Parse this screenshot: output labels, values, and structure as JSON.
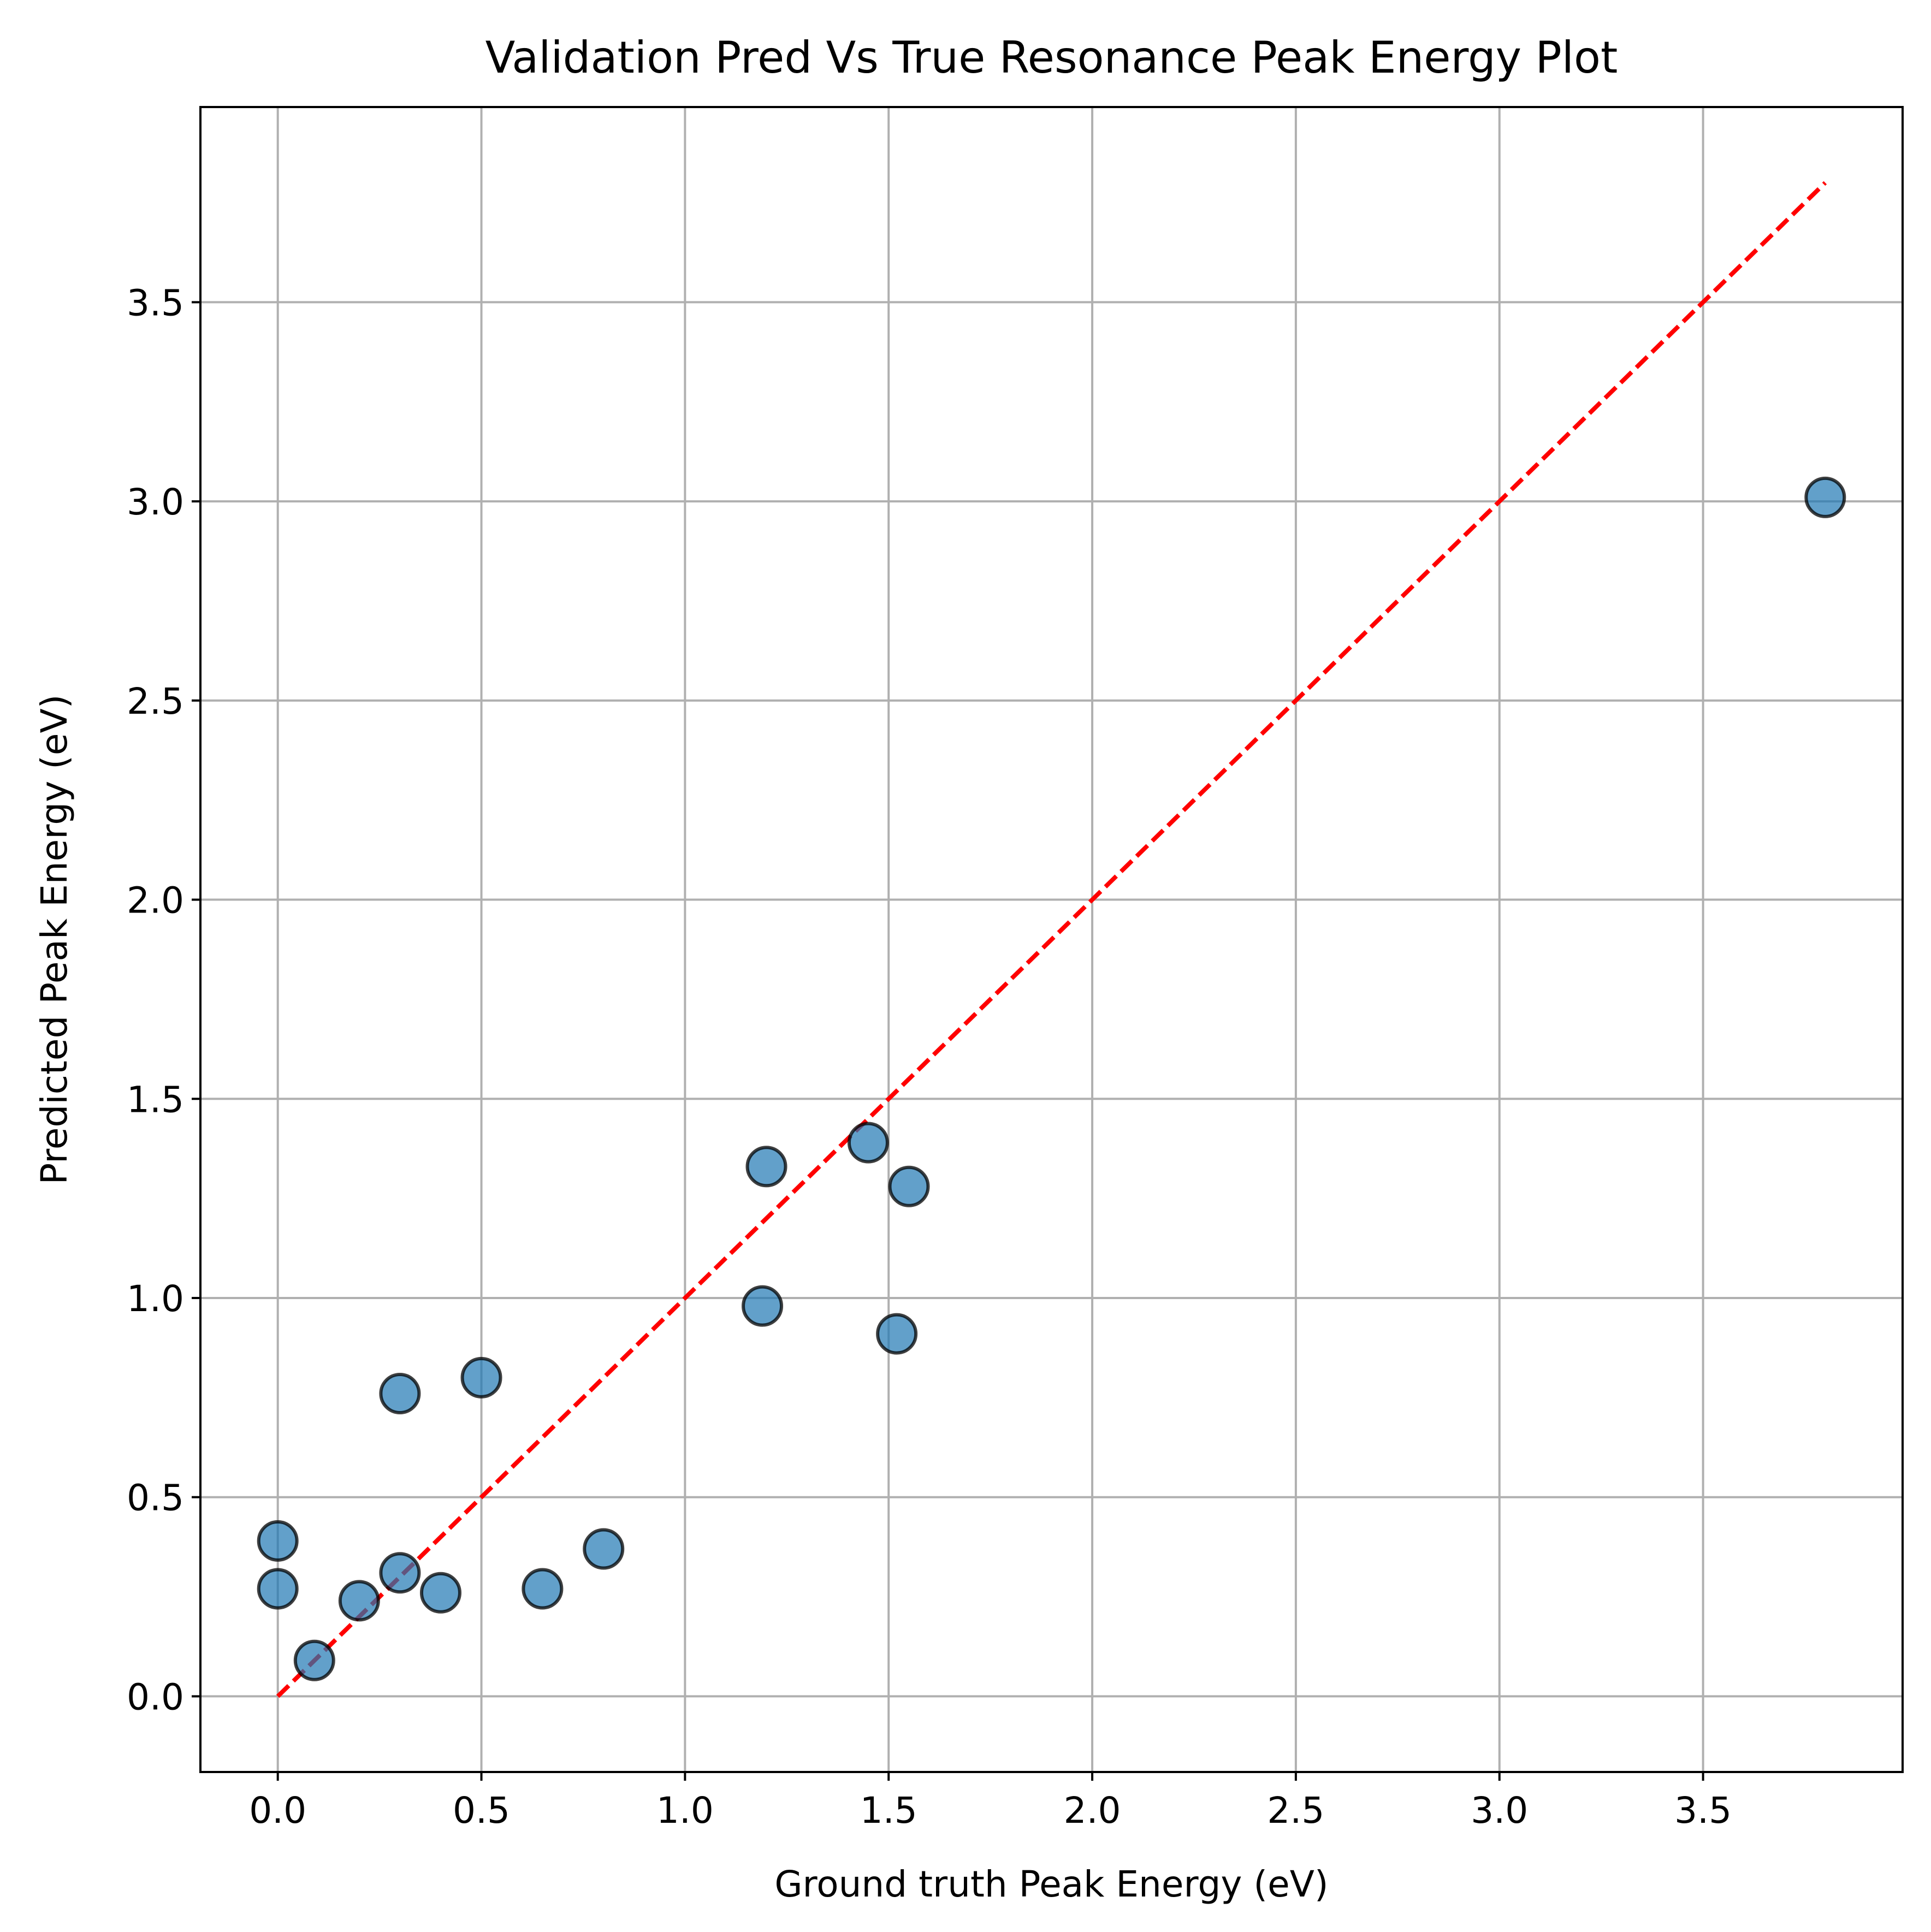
{
  "chart_data": {
    "type": "scatter",
    "title": "Validation Pred Vs True Resonance Peak Energy Plot",
    "xlabel": "Ground truth Peak Energy (eV)",
    "ylabel": "Predicted Peak Energy (eV)",
    "xlim": [
      -0.19,
      3.99
    ],
    "ylim": [
      -0.19,
      3.99
    ],
    "xticks": [
      "0.0",
      "0.5",
      "1.0",
      "1.5",
      "2.0",
      "2.5",
      "3.0",
      "3.5"
    ],
    "yticks": [
      "0.0",
      "0.5",
      "1.0",
      "1.5",
      "2.0",
      "2.5",
      "3.0",
      "3.5"
    ],
    "grid": true,
    "legend": "none",
    "colors": {
      "points": "#1f77b4",
      "point_edge": "#000000",
      "reference_line": "#ff0000",
      "grid": "#b0b0b0"
    },
    "series": [
      {
        "x": [
          0.0,
          0.0,
          0.09,
          0.2,
          0.3,
          0.3,
          0.4,
          0.5,
          0.65,
          0.8,
          1.19,
          1.2,
          1.45,
          1.52,
          1.55,
          3.8
        ],
        "y": [
          0.39,
          0.27,
          0.09,
          0.24,
          0.76,
          0.31,
          0.26,
          0.8,
          0.27,
          0.37,
          0.98,
          1.33,
          1.39,
          0.91,
          1.28,
          3.01
        ]
      }
    ],
    "reference_line": {
      "style": "dashed",
      "x": [
        0.0,
        3.8
      ],
      "y": [
        0.0,
        3.8
      ]
    }
  }
}
